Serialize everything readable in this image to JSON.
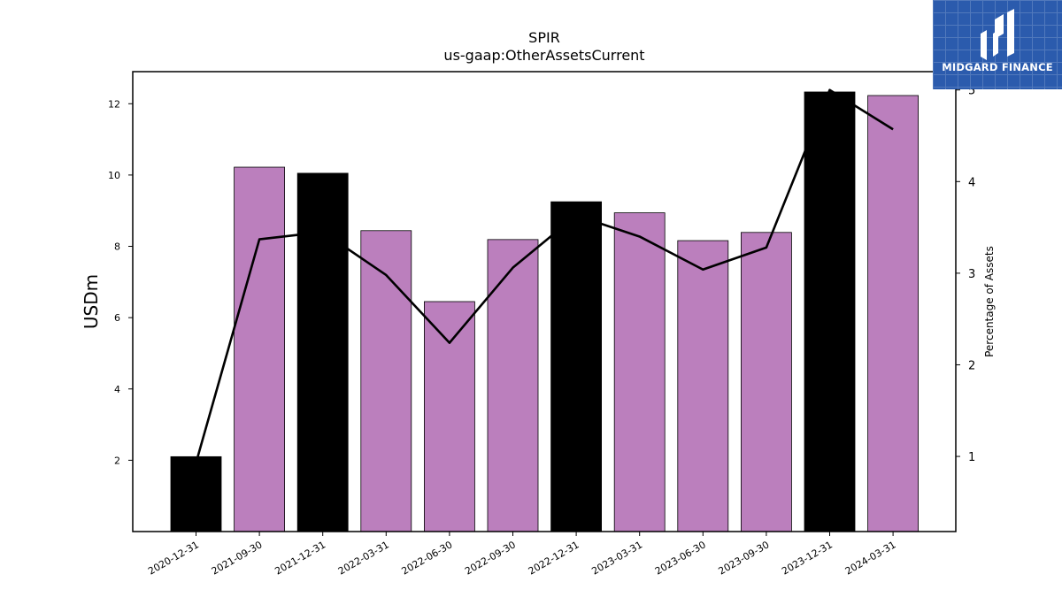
{
  "chart_data": {
    "type": "bar",
    "title": "SPIR",
    "subtitle": "us-gaap:OtherAssetsCurrent",
    "ylabel": "USDm",
    "y2label": "Percentage of Assets",
    "categories": [
      "2020-12-31",
      "2021-09-30",
      "2021-12-31",
      "2022-03-31",
      "2022-06-30",
      "2022-09-30",
      "2022-12-31",
      "2023-03-31",
      "2023-06-30",
      "2023-09-30",
      "2023-12-31",
      "2024-03-31"
    ],
    "bar_values": [
      2.1,
      10.22,
      10.05,
      8.44,
      6.45,
      8.19,
      9.25,
      8.94,
      8.16,
      8.39,
      12.33,
      12.23
    ],
    "bar_colors": [
      "#000000",
      "#bb7fbd",
      "#000000",
      "#bb7fbd",
      "#bb7fbd",
      "#bb7fbd",
      "#000000",
      "#bb7fbd",
      "#bb7fbd",
      "#bb7fbd",
      "#000000",
      "#bb7fbd"
    ],
    "line_values": [
      0.93,
      3.37,
      3.45,
      2.98,
      2.24,
      3.06,
      3.63,
      3.4,
      3.04,
      3.28,
      5.0,
      4.57
    ],
    "line_color": "#000000",
    "ylim": [
      0,
      12.9
    ],
    "y2lim": [
      0.18,
      5.2
    ],
    "yticks": [
      2,
      4,
      6,
      8,
      10,
      12
    ],
    "y2ticks": [
      1,
      2,
      3,
      4,
      5
    ]
  },
  "logo": {
    "text": "MIDGARD FINANCE"
  }
}
